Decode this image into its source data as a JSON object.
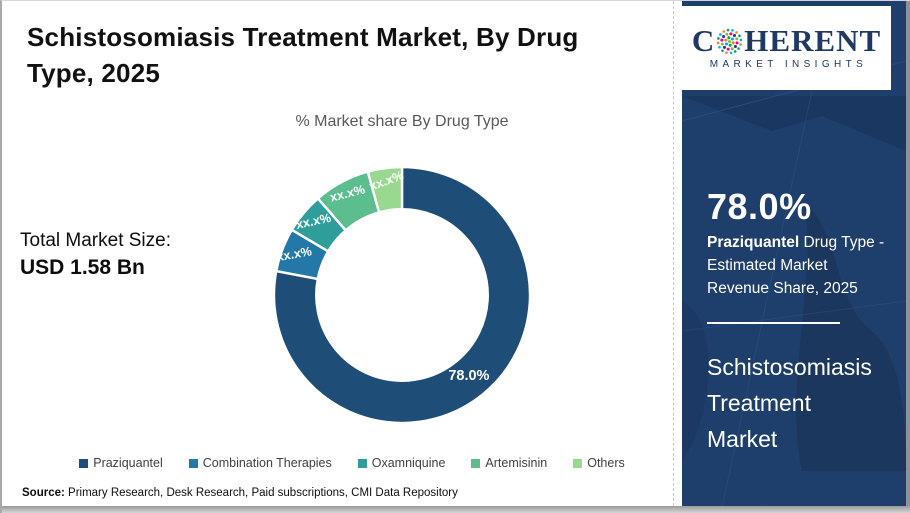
{
  "page": {
    "title_lines": [
      "Schistosomiasis Treatment Market, By Drug",
      "Type, 2025"
    ],
    "subtitle": "% Market share By Drug Type",
    "total_market_size_label": "Total Market Size:",
    "total_market_size_value": "USD 1.58 Bn",
    "source_label": "Source:",
    "source_text": "Primary Research, Desk Research, Paid subscriptions, CMI Data Repository"
  },
  "chart_data": {
    "type": "pie",
    "subtype": "donut",
    "title": "% Market share By Drug Type",
    "categories": [
      "Praziquantel",
      "Combination Therapies",
      "Oxamniquine",
      "Artemisinin",
      "Others"
    ],
    "labels": [
      "78.0%",
      "xx.x%",
      "xx.x%",
      "xx.x%",
      "xx.x%"
    ],
    "values_pct_est": [
      78.0,
      5.5,
      5.1,
      7.1,
      4.3
    ],
    "colors": [
      "#1e4e78",
      "#2478a8",
      "#2f9e9b",
      "#5cbd8e",
      "#99d88f"
    ],
    "start_angle_deg": 0,
    "direction": "clockwise",
    "inner_radius_ratio": 0.67,
    "label_rotations_deg": [
      0,
      -10,
      -12,
      -14,
      -20
    ],
    "legend_position": "bottom",
    "note": "Only Praziquantel share (78.0%) is disclosed; other slice labels are masked as xx.x%"
  },
  "sidebar": {
    "logo": {
      "brand_first_letter": "C",
      "brand_rest": "HERENT",
      "tagline": "MARKET INSIGHTS",
      "globe_colors": [
        "#7ac143",
        "#00aeef",
        "#ec008c",
        "#f58220",
        "#2e3192",
        "#00a651"
      ],
      "text_color": "#1f3864"
    },
    "stat_value": "78.0%",
    "stat_label_bold": "Praziquantel",
    "stat_label_rest": "Drug Type - Estimated Market Revenue Share, 2025",
    "panel_title": "Schistosomiasis Treatment Market",
    "colors": {
      "panel_bg": "#1e3e6b",
      "text": "#ffffff"
    }
  }
}
